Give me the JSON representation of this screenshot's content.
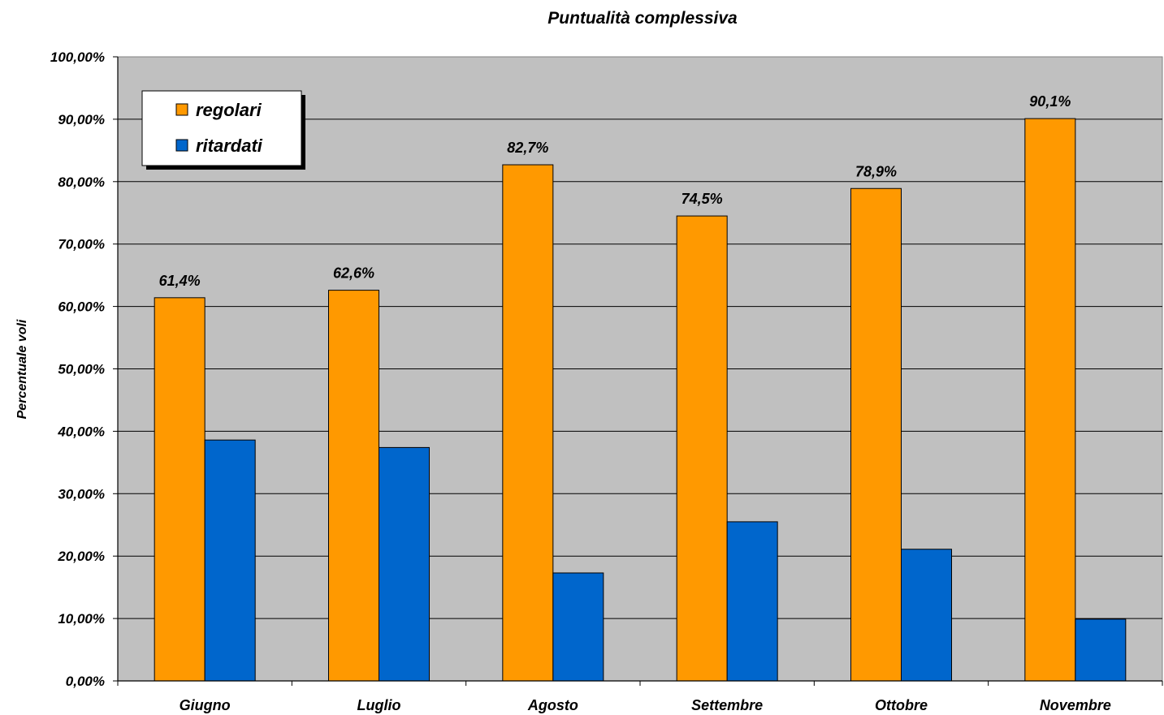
{
  "chart_data": {
    "type": "bar",
    "title": "Puntualità complessiva",
    "xlabel": "",
    "ylabel": "Percentuale voli",
    "ylim": [
      0,
      100
    ],
    "yticks": [
      "0,00%",
      "10,00%",
      "20,00%",
      "30,00%",
      "40,00%",
      "50,00%",
      "60,00%",
      "70,00%",
      "80,00%",
      "90,00%",
      "100,00%"
    ],
    "categories": [
      "Giugno",
      "Luglio",
      "Agosto",
      "Settembre",
      "Ottobre",
      "Novembre"
    ],
    "series": [
      {
        "name": "regolari",
        "color": "#FF9900",
        "values": [
          61.4,
          62.6,
          82.7,
          74.5,
          78.9,
          90.1
        ],
        "labels": [
          "61,4%",
          "62,6%",
          "82,7%",
          "74,5%",
          "78,9%",
          "90,1%"
        ]
      },
      {
        "name": "ritardati",
        "color": "#0066CC",
        "values": [
          38.6,
          37.4,
          17.3,
          25.5,
          21.1,
          9.9
        ]
      }
    ],
    "grid": true,
    "plot_background": "#C0C0C0",
    "legend_position": "top-left"
  }
}
